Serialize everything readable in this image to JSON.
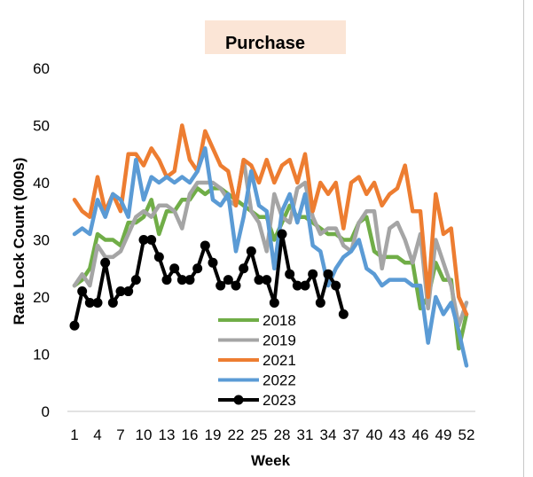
{
  "chart_data": {
    "type": "line",
    "title": "Purchase",
    "title_background": "#fbe5d6",
    "xlabel": "Week",
    "ylabel": "Rate Lock Count (000s)",
    "xlim": [
      1,
      52
    ],
    "ylim": [
      0,
      60
    ],
    "x_ticks": [
      "1",
      "4",
      "7",
      "10",
      "13",
      "16",
      "19",
      "22",
      "25",
      "28",
      "31",
      "34",
      "37",
      "40",
      "43",
      "46",
      "49",
      "52"
    ],
    "y_ticks": [
      "0",
      "10",
      "20",
      "30",
      "40",
      "50",
      "60"
    ],
    "grid": false,
    "legend_position": "bottom-center",
    "series": [
      {
        "name": "2018",
        "color": "#70ad47",
        "marker": false,
        "values": [
          22,
          23,
          25,
          31,
          30,
          30,
          29,
          33,
          33,
          34,
          37,
          31,
          35,
          35,
          37,
          37,
          39,
          38,
          39,
          39,
          38,
          37,
          36,
          35,
          34,
          34,
          30,
          33,
          36,
          34,
          34,
          33,
          32,
          31,
          31,
          30,
          30,
          33,
          34,
          28,
          27,
          27,
          27,
          26,
          26,
          18,
          20,
          26,
          23,
          23,
          11,
          17
        ]
      },
      {
        "name": "2019",
        "color": "#a5a5a5",
        "marker": false,
        "values": [
          22,
          24,
          22,
          29,
          27,
          27,
          28,
          31,
          34,
          35,
          34,
          36,
          36,
          35,
          32,
          38,
          40,
          40,
          40,
          39,
          37,
          36,
          44,
          35,
          33,
          28,
          38,
          34,
          33,
          39,
          40,
          34,
          31,
          32,
          32,
          29,
          28,
          33,
          35,
          35,
          25,
          32,
          33,
          30,
          26,
          31,
          18,
          30,
          26,
          22,
          15,
          19
        ]
      },
      {
        "name": "2021",
        "color": "#ed7d31",
        "marker": false,
        "values": [
          37,
          35,
          34,
          41,
          35,
          38,
          35,
          45,
          45,
          43,
          46,
          44,
          41,
          42,
          50,
          44,
          42,
          49,
          46,
          43,
          42,
          36,
          44,
          43,
          40,
          44,
          40,
          43,
          44,
          40,
          45,
          35,
          40,
          38,
          40,
          32,
          40,
          41,
          38,
          40,
          36,
          38,
          39,
          43,
          35,
          35,
          20,
          38,
          31,
          32,
          20,
          17
        ]
      },
      {
        "name": "2022",
        "color": "#5b9bd5",
        "marker": false,
        "values": [
          31,
          32,
          31,
          37,
          34,
          38,
          37,
          34,
          44,
          37,
          41,
          40,
          41,
          40,
          41,
          40,
          42,
          46,
          37,
          36,
          38,
          28,
          34,
          42,
          36,
          35,
          25,
          35,
          38,
          33,
          38,
          29,
          28,
          22,
          25,
          27,
          28,
          30,
          25,
          24,
          22,
          23,
          23,
          23,
          22,
          22,
          12,
          20,
          17,
          19,
          14,
          8
        ]
      },
      {
        "name": "2023",
        "color": "#000000",
        "marker": true,
        "values": [
          15,
          21,
          19,
          19,
          26,
          19,
          21,
          21,
          23,
          30,
          30,
          27,
          23,
          25,
          23,
          23,
          25,
          29,
          26,
          22,
          23,
          22,
          25,
          28,
          23,
          23,
          19,
          31,
          24,
          22,
          22,
          24,
          19,
          24,
          22,
          17
        ]
      }
    ]
  }
}
